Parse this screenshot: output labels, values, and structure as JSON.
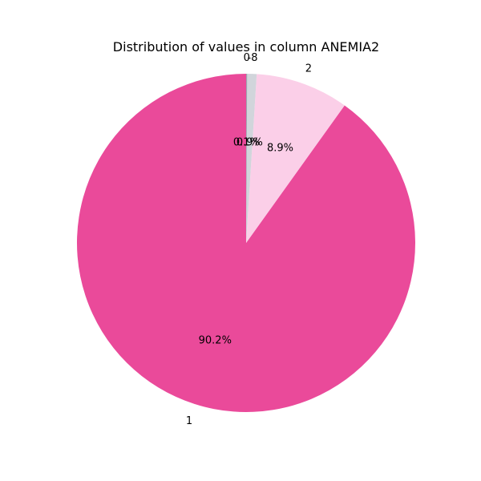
{
  "chart_data": {
    "type": "pie",
    "title": "Distribution of values in column ANEMIA2",
    "categories": [
      "1",
      "2",
      "-8",
      "0"
    ],
    "values": [
      90.2,
      8.9,
      0.9,
      0.1
    ],
    "percent_labels": [
      "90.2%",
      "8.9%",
      "0.9%",
      "0.1%"
    ],
    "start_angle_deg": 90,
    "direction": "counterclockwise",
    "colors": [
      "#ea4a9a",
      "#fbcfe8",
      "#d1d5db",
      "#9ca3af"
    ],
    "legend": "none"
  }
}
